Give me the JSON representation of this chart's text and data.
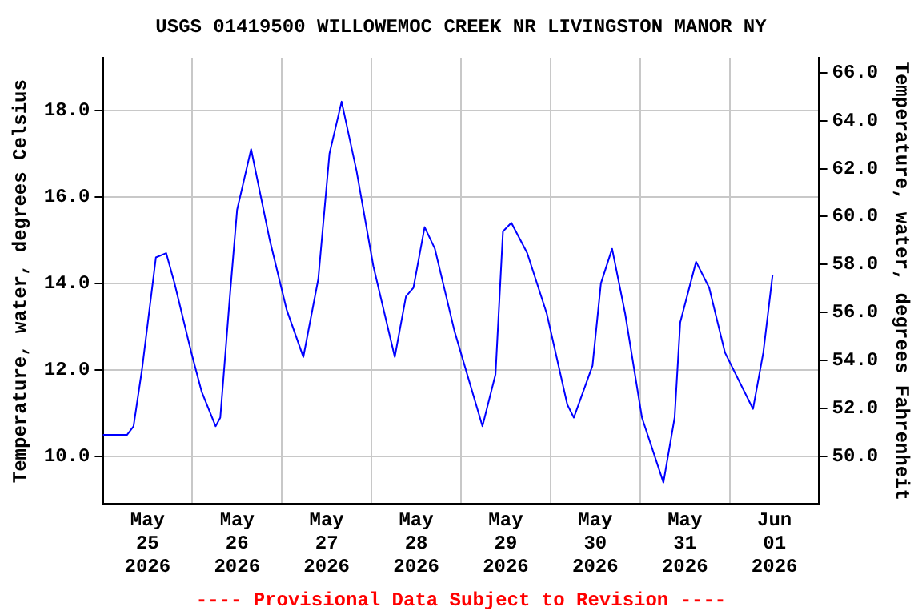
{
  "chart_data": {
    "type": "line",
    "title": "USGS 01419500 WILLOWEMOC CREEK NR LIVINGSTON MANOR NY",
    "ylabel": "Temperature, water, degrees Celsius",
    "y2label": "Temperature, water, degrees Fahrenheit",
    "annotations": [
      "---- Provisional Data Subject to Revision ----"
    ],
    "x": [
      "2026-05-25T00:00",
      "2026-05-25T06:30",
      "2026-05-25T08:15",
      "2026-05-25T10:30",
      "2026-05-25T14:15",
      "2026-05-25T17:00",
      "2026-05-25T19:15",
      "2026-05-25T23:45",
      "2026-05-26T02:30",
      "2026-05-26T06:15",
      "2026-05-26T07:30",
      "2026-05-26T10:15",
      "2026-05-26T12:00",
      "2026-05-26T15:45",
      "2026-05-26T20:45",
      "2026-05-27T01:15",
      "2026-05-27T05:45",
      "2026-05-27T09:45",
      "2026-05-27T12:45",
      "2026-05-27T16:00",
      "2026-05-27T20:00",
      "2026-05-28T00:30",
      "2026-05-28T06:15",
      "2026-05-28T09:15",
      "2026-05-28T11:15",
      "2026-05-28T14:15",
      "2026-05-28T17:00",
      "2026-05-28T22:15",
      "2026-05-29T05:45",
      "2026-05-29T09:15",
      "2026-05-29T11:15",
      "2026-05-29T13:30",
      "2026-05-29T17:45",
      "2026-05-29T23:00",
      "2026-05-30T04:30",
      "2026-05-30T06:15",
      "2026-05-30T11:15",
      "2026-05-30T13:30",
      "2026-05-30T16:30",
      "2026-05-30T20:00",
      "2026-05-31T00:30",
      "2026-05-31T06:15",
      "2026-05-31T09:15",
      "2026-05-31T10:45",
      "2026-05-31T15:00",
      "2026-05-31T18:30",
      "2026-05-31T22:45",
      "2026-06-01T06:15",
      "2026-06-01T09:00",
      "2026-06-01T11:30"
    ],
    "series": [
      {
        "color": "#0000ff",
        "values": [
          10.5,
          10.5,
          10.7,
          12.0,
          14.6,
          14.7,
          14.0,
          12.4,
          11.5,
          10.7,
          10.9,
          13.9,
          15.7,
          17.1,
          15.0,
          13.4,
          12.3,
          14.1,
          17.0,
          18.2,
          16.6,
          14.4,
          12.3,
          13.7,
          13.9,
          15.3,
          14.8,
          12.9,
          10.7,
          11.9,
          15.2,
          15.4,
          14.7,
          13.3,
          11.2,
          10.9,
          12.1,
          14.0,
          14.8,
          13.3,
          10.9,
          9.4,
          10.9,
          13.1,
          14.5,
          13.9,
          12.4,
          11.1,
          12.4,
          14.2
        ]
      }
    ],
    "xlim": [
      "2026-05-25T00:00",
      "2026-06-02T00:00"
    ],
    "xticks": [
      {
        "value": "2026-05-25T12:00",
        "label": "May\n25\n2026"
      },
      {
        "value": "2026-05-26T00:00",
        "label": null
      },
      {
        "value": "2026-05-26T12:00",
        "label": "May\n26\n2026"
      },
      {
        "value": "2026-05-27T00:00",
        "label": null
      },
      {
        "value": "2026-05-27T12:00",
        "label": "May\n27\n2026"
      },
      {
        "value": "2026-05-28T00:00",
        "label": null
      },
      {
        "value": "2026-05-28T12:00",
        "label": "May\n28\n2026"
      },
      {
        "value": "2026-05-29T00:00",
        "label": null
      },
      {
        "value": "2026-05-29T12:00",
        "label": "May\n29\n2026"
      },
      {
        "value": "2026-05-30T00:00",
        "label": null
      },
      {
        "value": "2026-05-30T12:00",
        "label": "May\n30\n2026"
      },
      {
        "value": "2026-05-31T00:00",
        "label": null
      },
      {
        "value": "2026-05-31T12:00",
        "label": "May\n31\n2026"
      },
      {
        "value": "2026-06-01T00:00",
        "label": null
      },
      {
        "value": "2026-06-01T12:00",
        "label": "Jun\n01\n2026"
      }
    ],
    "ylim": [
      8.9,
      19.2
    ],
    "yticks": [
      {
        "value": 10,
        "label": "10.0"
      },
      {
        "value": 12,
        "label": "12.0"
      },
      {
        "value": 14,
        "label": "14.0"
      },
      {
        "value": 16,
        "label": "16.0"
      },
      {
        "value": 18,
        "label": "18.0"
      }
    ],
    "y2lim": [
      48.0,
      66.6
    ],
    "y2ticks": [
      {
        "value": 50,
        "label": "50.0"
      },
      {
        "value": 52,
        "label": "52.0"
      },
      {
        "value": 54,
        "label": "54.0"
      },
      {
        "value": 56,
        "label": "56.0"
      },
      {
        "value": 58,
        "label": "58.0"
      },
      {
        "value": 60,
        "label": "60.0"
      },
      {
        "value": 62,
        "label": "62.0"
      },
      {
        "value": 64,
        "label": "64.0"
      },
      {
        "value": 66,
        "label": "66.0"
      }
    ],
    "grid": true,
    "marker": "none",
    "line_style": "solid"
  }
}
